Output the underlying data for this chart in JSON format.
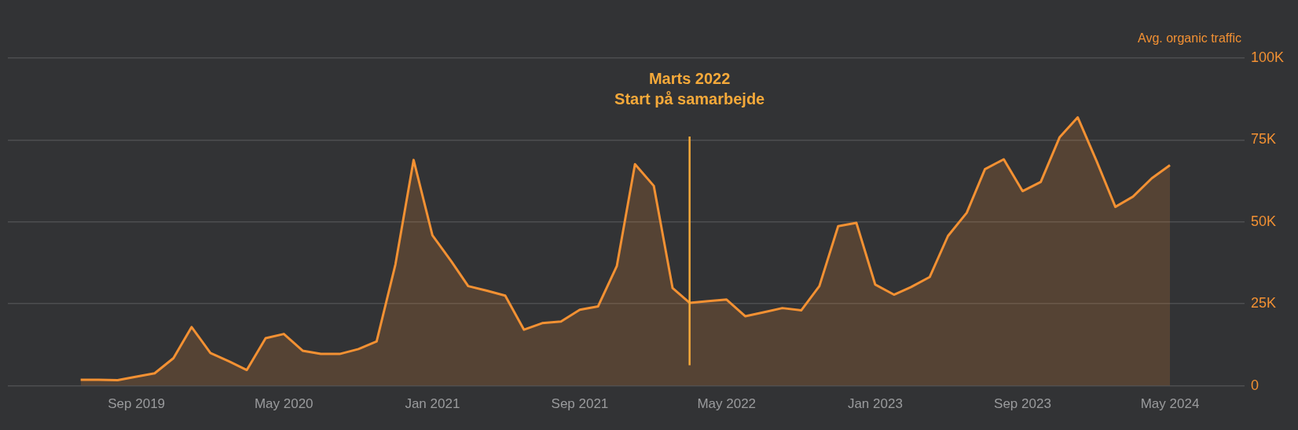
{
  "chart_data": {
    "type": "area",
    "ylabel": "Avg. organic traffic",
    "color": "#f39133",
    "marker": "none",
    "grid": "y",
    "x": [
      "2019-06",
      "2019-07",
      "2019-08",
      "2019-09",
      "2019-10",
      "2019-11",
      "2019-12",
      "2020-01",
      "2020-02",
      "2020-03",
      "2020-04",
      "2020-05",
      "2020-06",
      "2020-07",
      "2020-08",
      "2020-09",
      "2020-10",
      "2020-11",
      "2020-12",
      "2021-01",
      "2021-02",
      "2021-03",
      "2021-04",
      "2021-05",
      "2021-06",
      "2021-07",
      "2021-08",
      "2021-09",
      "2021-10",
      "2021-11",
      "2021-12",
      "2022-01",
      "2022-02",
      "2022-03",
      "2022-04",
      "2022-05",
      "2022-06",
      "2022-07",
      "2022-08",
      "2022-09",
      "2022-10",
      "2022-11",
      "2022-12",
      "2023-01",
      "2023-02",
      "2023-03",
      "2023-04",
      "2023-05",
      "2023-06",
      "2023-07",
      "2023-08",
      "2023-09",
      "2023-10",
      "2023-11",
      "2023-12",
      "2024-01",
      "2024-02",
      "2024-03",
      "2024-04",
      "2024-05"
    ],
    "values": [
      1800,
      1800,
      1700,
      2800,
      3800,
      8400,
      17900,
      10000,
      7400,
      4800,
      14500,
      15800,
      10700,
      9700,
      9700,
      11200,
      13500,
      37000,
      68900,
      45900,
      38000,
      30400,
      29000,
      27500,
      17100,
      19100,
      19600,
      23200,
      24200,
      36500,
      67600,
      61000,
      29800,
      25300,
      25800,
      26300,
      21200,
      22400,
      23700,
      23000,
      30400,
      48700,
      49700,
      30900,
      27800,
      30100,
      33200,
      45700,
      52800,
      66100,
      69100,
      59400,
      62200,
      75800,
      81900,
      68600,
      54600,
      57700,
      63300,
      67300
    ],
    "xlim": [
      "2019-02",
      "2024-09"
    ],
    "xticks": [
      {
        "value": "2019-09",
        "label": "Sep 2019"
      },
      {
        "value": "2020-05",
        "label": "May 2020"
      },
      {
        "value": "2021-01",
        "label": "Jan 2021"
      },
      {
        "value": "2021-09",
        "label": "Sep 2021"
      },
      {
        "value": "2022-05",
        "label": "May 2022"
      },
      {
        "value": "2023-01",
        "label": "Jan 2023"
      },
      {
        "value": "2023-09",
        "label": "Sep 2023"
      },
      {
        "value": "2024-05",
        "label": "May 2024"
      }
    ],
    "ylim": [
      0,
      100000
    ],
    "yticks": [
      0,
      {
        "value": 25000,
        "label": "25K"
      },
      {
        "value": 50000,
        "label": "50K"
      },
      {
        "value": 75000,
        "label": "75K"
      },
      {
        "value": 100000,
        "label": "100K"
      }
    ],
    "ref_lines": [
      {
        "axis": "x",
        "value": "2022-03",
        "label": "Marts 2022\nStart på samarbejde",
        "color": "#f5a93a"
      }
    ]
  }
}
